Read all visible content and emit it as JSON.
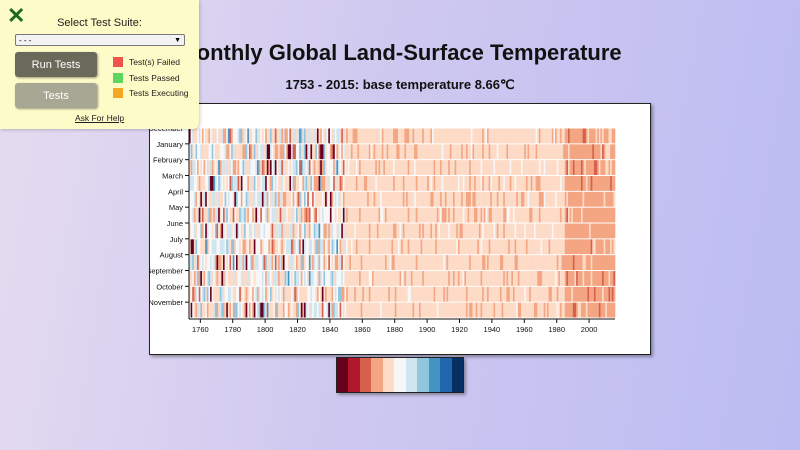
{
  "title": "Monthly Global Land-Surface Temperature",
  "subtitle": "1753 - 2015: base temperature 8.66℃",
  "panel": {
    "close_icon": "green-x-icon",
    "select_label": "Select Test Suite:",
    "select_value": "- - -",
    "run_button": "Run Tests",
    "tests_button": "Tests",
    "legend": [
      {
        "label": "Test(s) Failed",
        "color": "#f0524c"
      },
      {
        "label": "Tests Passed",
        "color": "#5cd65c"
      },
      {
        "label": "Tests Executing",
        "color": "#f5a623"
      }
    ],
    "help_link": "Ask For Help"
  },
  "chart_data": {
    "type": "heatmap",
    "title": "Monthly Global Land-Surface Temperature",
    "subtitle": "1753 - 2015: base temperature 8.66℃",
    "x_range": [
      1753,
      2015
    ],
    "x_ticks": [
      "1760",
      "1780",
      "1800",
      "1820",
      "1840",
      "1860",
      "1880",
      "1900",
      "1920",
      "1940",
      "1960",
      "1980",
      "2000"
    ],
    "y_labels": [
      "December",
      "January",
      "February",
      "March",
      "April",
      "May",
      "June",
      "July",
      "August",
      "September",
      "October",
      "November"
    ],
    "base_temperature": 8.66,
    "color_scale": [
      "#67001f",
      "#b2182b",
      "#d6604d",
      "#f4a582",
      "#fddbc7",
      "#f7f7f7",
      "#d1e5f0",
      "#92c5de",
      "#4393c3",
      "#2166ac",
      "#053061"
    ],
    "trend": "early years (1753-1850) highly variable from dark red to dark blue; 1850-1980 mostly light orange; 1985-2015 mostly salmon"
  }
}
